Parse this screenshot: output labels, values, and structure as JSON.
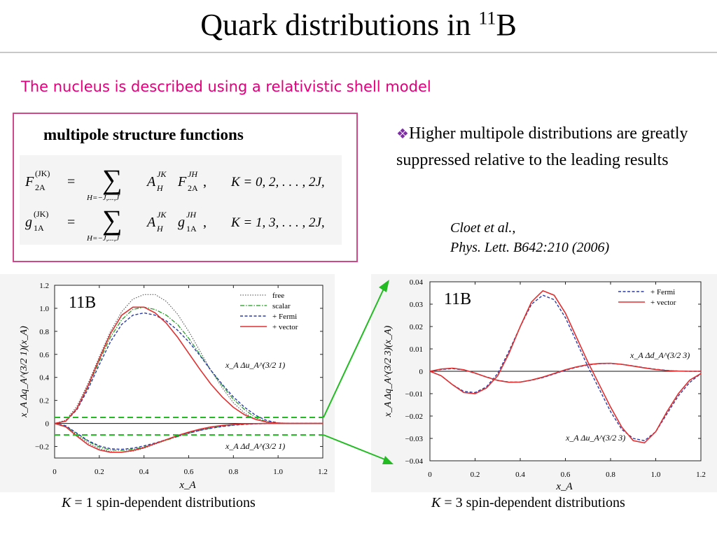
{
  "slide": {
    "title_main": "Quark distributions in ",
    "title_sup": "11",
    "title_tail": "B",
    "subtitle": "The nucleus is described using a relativistic shell model",
    "box_title": "multipole structure functions",
    "bullet_symbol": "❖",
    "bullet_text": "Higher multipole distributions are greatly suppressed relative to the leading results",
    "citation_line1": "Cloet et al.,",
    "citation_line2": "Phys. Lett. B642:210 (2006)",
    "caption_left_k": "K",
    "caption_left_rest": " = 1 spin-dependent distributions",
    "caption_right_k": "K",
    "caption_right_rest": " = 3 spin-dependent distributions"
  },
  "equations": {
    "eq1_lhs": "F",
    "eq1_lhs_sup": "(JK)",
    "eq1_lhs_sub": "2A",
    "eq1_sum_sub": "H=−J,...,J",
    "eq1_coef": "A",
    "eq1_coef_sup": "JK",
    "eq1_coef_sub": "H",
    "eq1_term": "F",
    "eq1_term_sup": "JH",
    "eq1_term_sub": "2A",
    "eq1_cond": "K = 0, 2, . . . , 2J,",
    "eq2_lhs": "g",
    "eq2_lhs_sup": "(JK)",
    "eq2_lhs_sub": "1A",
    "eq2_sum_sub": "H=−J,...,J",
    "eq2_coef": "A",
    "eq2_coef_sup": "JK",
    "eq2_coef_sub": "H",
    "eq2_term": "g",
    "eq2_term_sup": "JH",
    "eq2_term_sub": "1A",
    "eq2_cond": "K = 1, 3, . . . , 2J,"
  },
  "colors": {
    "subtitle": "#e0007a",
    "box_border": "#d0488a",
    "free": "#444444",
    "scalar": "#1a9a1a",
    "fermi": "#2a3aa8",
    "vector": "#e03030",
    "arrow": "#22bb22"
  },
  "chart_data": [
    {
      "type": "line",
      "nucleus_label": "11B",
      "xlabel": "x_A",
      "ylabel": "x_A Δq_A^(3/2 1)(x_A)",
      "xlim": [
        0,
        1.2
      ],
      "ylim": [
        -0.3,
        1.2
      ],
      "x_ticks": [
        "0",
        "0.2",
        "0.4",
        "0.6",
        "0.8",
        "1.0",
        "1.2"
      ],
      "y_ticks": [
        "−0.2",
        "0",
        "0.2",
        "0.4",
        "0.6",
        "0.8",
        "1.0",
        "1.2"
      ],
      "legend": [
        "free",
        "scalar",
        "+ Fermi",
        "+ vector"
      ],
      "legend_position": "top-right",
      "annotations": [
        "x_A Δu_A^(3/2 1)",
        "x_A Δd_A^(3/2 1)"
      ],
      "x": [
        0,
        0.05,
        0.1,
        0.15,
        0.2,
        0.25,
        0.3,
        0.35,
        0.4,
        0.45,
        0.5,
        0.55,
        0.6,
        0.65,
        0.7,
        0.75,
        0.8,
        0.85,
        0.9,
        0.95,
        1.0,
        1.05,
        1.1,
        1.15,
        1.2
      ],
      "series": [
        {
          "name": "free",
          "group": "u",
          "values": [
            0,
            0.03,
            0.15,
            0.35,
            0.58,
            0.8,
            0.97,
            1.08,
            1.12,
            1.12,
            1.06,
            0.95,
            0.8,
            0.63,
            0.46,
            0.31,
            0.18,
            0.09,
            0.035,
            0.01,
            0.0,
            0,
            0,
            0,
            0
          ]
        },
        {
          "name": "scalar",
          "group": "u",
          "values": [
            0,
            0.02,
            0.13,
            0.32,
            0.54,
            0.75,
            0.9,
            0.99,
            1.01,
            0.99,
            0.94,
            0.86,
            0.74,
            0.6,
            0.46,
            0.33,
            0.21,
            0.12,
            0.05,
            0.015,
            0.0,
            0,
            0,
            0,
            0
          ]
        },
        {
          "name": "+ Fermi",
          "group": "u",
          "values": [
            0,
            0.02,
            0.12,
            0.3,
            0.51,
            0.71,
            0.86,
            0.94,
            0.96,
            0.94,
            0.89,
            0.81,
            0.71,
            0.59,
            0.46,
            0.34,
            0.23,
            0.14,
            0.07,
            0.025,
            0.005,
            0,
            0,
            0,
            0
          ]
        },
        {
          "name": "+ vector",
          "group": "u",
          "values": [
            0,
            0.02,
            0.13,
            0.33,
            0.56,
            0.78,
            0.94,
            1.01,
            1.01,
            0.96,
            0.87,
            0.75,
            0.61,
            0.47,
            0.34,
            0.23,
            0.14,
            0.075,
            0.035,
            0.012,
            0.003,
            0,
            0,
            0,
            0
          ]
        },
        {
          "name": "free",
          "group": "d",
          "values": [
            0,
            -0.03,
            -0.1,
            -0.17,
            -0.22,
            -0.245,
            -0.25,
            -0.24,
            -0.215,
            -0.18,
            -0.145,
            -0.11,
            -0.08,
            -0.055,
            -0.035,
            -0.02,
            -0.01,
            -0.004,
            -0.001,
            0,
            0,
            0,
            0,
            0,
            0
          ]
        },
        {
          "name": "scalar",
          "group": "d",
          "values": [
            0,
            -0.025,
            -0.09,
            -0.155,
            -0.205,
            -0.23,
            -0.235,
            -0.225,
            -0.205,
            -0.175,
            -0.145,
            -0.115,
            -0.085,
            -0.06,
            -0.04,
            -0.025,
            -0.013,
            -0.006,
            -0.002,
            0,
            0,
            0,
            0,
            0,
            0
          ]
        },
        {
          "name": "+ Fermi",
          "group": "d",
          "values": [
            0,
            -0.02,
            -0.085,
            -0.15,
            -0.195,
            -0.22,
            -0.225,
            -0.215,
            -0.195,
            -0.17,
            -0.14,
            -0.11,
            -0.085,
            -0.06,
            -0.042,
            -0.027,
            -0.015,
            -0.008,
            -0.003,
            -0.001,
            0,
            0,
            0,
            0,
            0
          ]
        },
        {
          "name": "+ vector",
          "group": "d",
          "values": [
            0,
            -0.03,
            -0.11,
            -0.185,
            -0.23,
            -0.25,
            -0.25,
            -0.235,
            -0.21,
            -0.175,
            -0.14,
            -0.105,
            -0.075,
            -0.05,
            -0.03,
            -0.017,
            -0.008,
            -0.003,
            -0.001,
            0,
            0,
            0,
            0,
            0,
            0
          ]
        }
      ]
    },
    {
      "type": "line",
      "nucleus_label": "11B",
      "xlabel": "x_A",
      "ylabel": "x_A Δq_A^(3/2 3)(x_A)",
      "xlim": [
        0,
        1.2
      ],
      "ylim": [
        -0.04,
        0.04
      ],
      "x_ticks": [
        "0",
        "0.2",
        "0.4",
        "0.6",
        "0.8",
        "1.0",
        "1.2"
      ],
      "y_ticks": [
        "−0.04",
        "−0.03",
        "−0.02",
        "−0.01",
        "0",
        "0.01",
        "0.02",
        "0.03",
        "0.04"
      ],
      "legend": [
        "+ Fermi",
        "+ vector"
      ],
      "legend_position": "top-right",
      "annotations": [
        "x_A Δd_A^(3/2 3)",
        "x_A Δu_A^(3/2 3)"
      ],
      "x": [
        0,
        0.05,
        0.1,
        0.15,
        0.2,
        0.25,
        0.3,
        0.35,
        0.4,
        0.45,
        0.5,
        0.55,
        0.6,
        0.65,
        0.7,
        0.75,
        0.8,
        0.85,
        0.9,
        0.95,
        1.0,
        1.05,
        1.1,
        1.15,
        1.2
      ],
      "series": [
        {
          "name": "+ Fermi",
          "group": "u",
          "values": [
            0,
            -0.002,
            -0.006,
            -0.009,
            -0.0095,
            -0.007,
            -0.001,
            0.009,
            0.02,
            0.03,
            0.034,
            0.032,
            0.024,
            0.013,
            0.002,
            -0.008,
            -0.018,
            -0.026,
            -0.03,
            -0.031,
            -0.027,
            -0.019,
            -0.011,
            -0.005,
            -0.001
          ]
        },
        {
          "name": "+ vector",
          "group": "u",
          "values": [
            0,
            -0.002,
            -0.006,
            -0.0095,
            -0.01,
            -0.0075,
            -0.002,
            0.008,
            0.02,
            0.031,
            0.036,
            0.034,
            0.026,
            0.015,
            0.004,
            -0.006,
            -0.016,
            -0.025,
            -0.031,
            -0.032,
            -0.027,
            -0.018,
            -0.01,
            -0.004,
            -0.001
          ]
        },
        {
          "name": "+ Fermi",
          "group": "d",
          "values": [
            0,
            0.0008,
            0.0012,
            0.0006,
            -0.0008,
            -0.0025,
            -0.004,
            -0.0048,
            -0.0048,
            -0.004,
            -0.0028,
            -0.0012,
            0.0005,
            0.0018,
            0.0028,
            0.0034,
            0.0035,
            0.0031,
            0.0024,
            0.0016,
            0.0009,
            0.0004,
            0.0001,
            0,
            0
          ]
        },
        {
          "name": "+ vector",
          "group": "d",
          "values": [
            0,
            0.001,
            0.0014,
            0.0007,
            -0.0008,
            -0.0026,
            -0.0041,
            -0.0049,
            -0.0048,
            -0.0039,
            -0.0026,
            -0.001,
            0.0007,
            0.002,
            0.003,
            0.0035,
            0.0036,
            0.0031,
            0.0023,
            0.0015,
            0.0008,
            0.0003,
            0.0001,
            0,
            0
          ]
        }
      ]
    }
  ]
}
